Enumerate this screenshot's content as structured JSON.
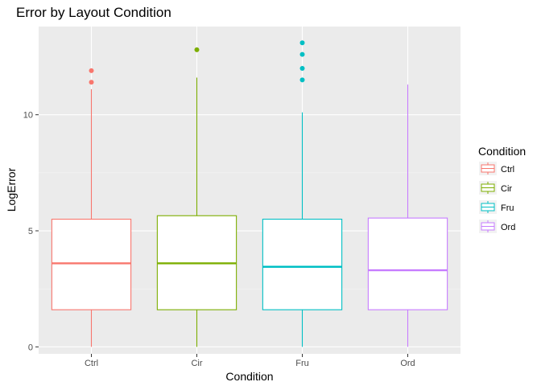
{
  "chart_data": {
    "type": "boxplot",
    "title": "Error by Layout Condition",
    "xlabel": "Condition",
    "ylabel": "LogError",
    "ylim": [
      -0.3,
      13.8
    ],
    "yticks": [
      0,
      5,
      10
    ],
    "grid": true,
    "legend": {
      "title": "Condition",
      "position": "right",
      "entries": [
        "Ctrl",
        "Cir",
        "Fru",
        "Ord"
      ]
    },
    "categories": [
      "Ctrl",
      "Cir",
      "Fru",
      "Ord"
    ],
    "boxes": [
      {
        "category": "Ctrl",
        "color": "#F8766D",
        "lower_whisker": 0.0,
        "q1": 1.6,
        "median": 3.6,
        "q3": 5.5,
        "upper_whisker": 11.1,
        "outliers": [
          11.4,
          11.9
        ]
      },
      {
        "category": "Cir",
        "color": "#7CAE00",
        "lower_whisker": 0.0,
        "q1": 1.6,
        "median": 3.6,
        "q3": 5.65,
        "upper_whisker": 11.6,
        "outliers": [
          12.8
        ]
      },
      {
        "category": "Fru",
        "color": "#00BFC4",
        "lower_whisker": 0.0,
        "q1": 1.6,
        "median": 3.45,
        "q3": 5.5,
        "upper_whisker": 10.1,
        "outliers": [
          11.5,
          12.0,
          12.6,
          13.1
        ]
      },
      {
        "category": "Ord",
        "color": "#C77CFF",
        "lower_whisker": 0.0,
        "q1": 1.6,
        "median": 3.3,
        "q3": 5.55,
        "upper_whisker": 11.3,
        "outliers": []
      }
    ]
  }
}
